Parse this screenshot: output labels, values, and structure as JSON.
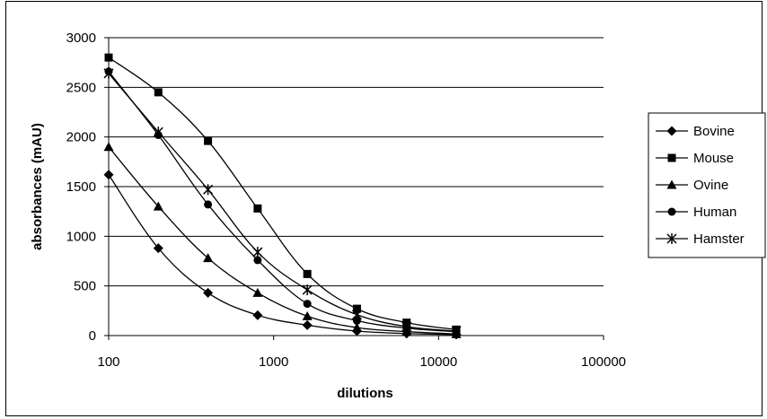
{
  "chart_data": {
    "type": "line",
    "title": "",
    "xlabel": "dilutions",
    "ylabel": "absorbances (mAU)",
    "xscale": "log",
    "xlim": [
      100,
      100000
    ],
    "ylim": [
      0,
      3000
    ],
    "x_ticks": [
      "100",
      "1000",
      "10000",
      "100000"
    ],
    "y_ticks": [
      "0",
      "500",
      "1000",
      "1500",
      "2000",
      "2500",
      "3000"
    ],
    "grid": "horizontal major gridlines",
    "legend_position": "right",
    "x": [
      100,
      200,
      400,
      800,
      1600,
      3200,
      6400,
      12800
    ],
    "series": [
      {
        "name": "Bovine",
        "marker": "diamond",
        "values": [
          1620,
          880,
          430,
          205,
          105,
          45,
          20,
          10
        ]
      },
      {
        "name": "Mouse",
        "marker": "square",
        "values": [
          2800,
          2450,
          1960,
          1280,
          620,
          270,
          130,
          60
        ]
      },
      {
        "name": "Ovine",
        "marker": "triangle",
        "values": [
          1900,
          1300,
          780,
          430,
          195,
          80,
          40,
          15
        ]
      },
      {
        "name": "Human",
        "marker": "circle",
        "values": [
          2660,
          2020,
          1320,
          760,
          320,
          150,
          75,
          40
        ]
      },
      {
        "name": "Hamster",
        "marker": "asterisk",
        "values": [
          2640,
          2050,
          1470,
          840,
          460,
          210,
          90,
          45
        ]
      }
    ]
  }
}
